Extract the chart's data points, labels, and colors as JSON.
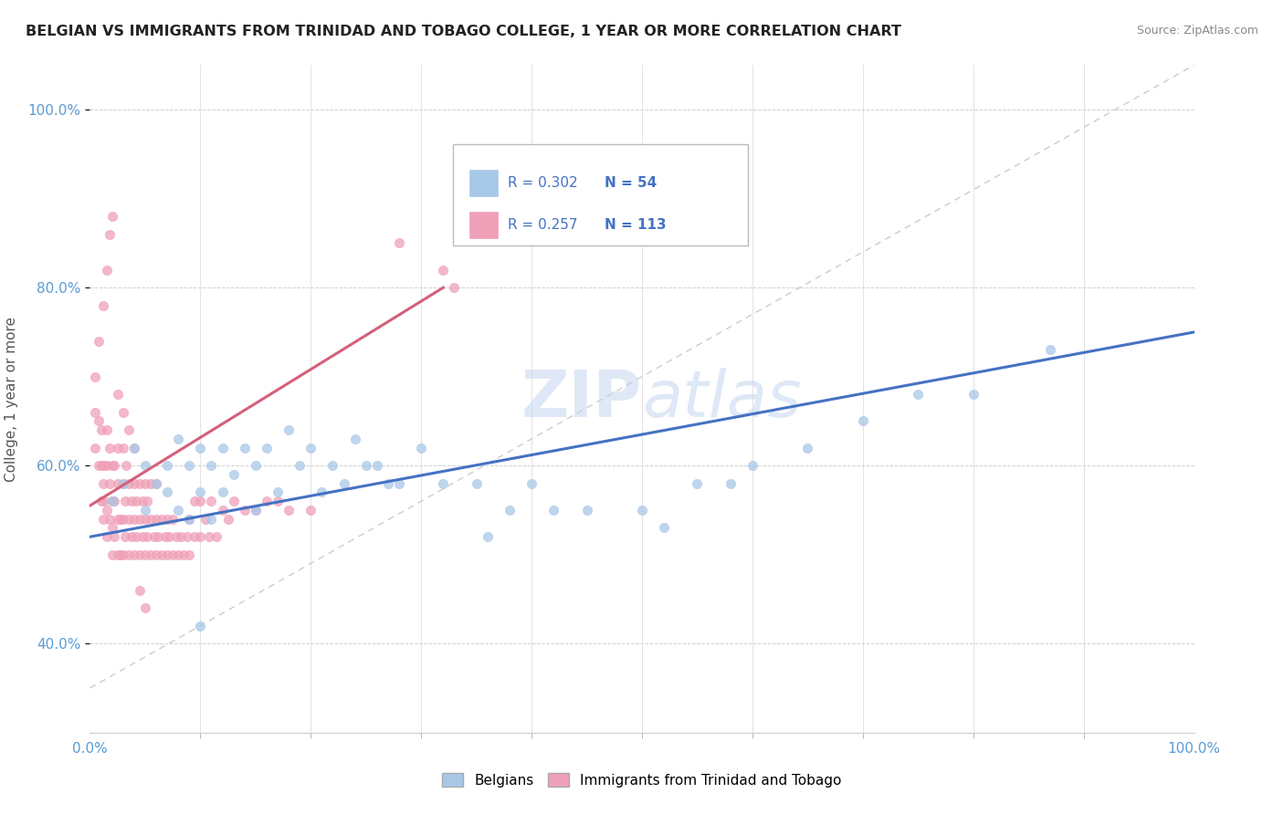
{
  "title": "BELGIAN VS IMMIGRANTS FROM TRINIDAD AND TOBAGO COLLEGE, 1 YEAR OR MORE CORRELATION CHART",
  "source": "Source: ZipAtlas.com",
  "ylabel": "College, 1 year or more",
  "blue_R": "R = 0.302",
  "blue_N": "N = 54",
  "pink_R": "R = 0.257",
  "pink_N": "N = 113",
  "blue_line_color": "#4472c4",
  "pink_line_color": "#d4607a",
  "blue_scatter_color": "#a8c8e8",
  "pink_scatter_color": "#f0a0b8",
  "watermark_color": "#c8daf0",
  "yticks": [
    "40.0%",
    "60.0%",
    "80.0%",
    "100.0%"
  ],
  "ytick_vals": [
    0.4,
    0.6,
    0.8,
    1.0
  ],
  "blue_x": [
    0.02,
    0.03,
    0.04,
    0.05,
    0.05,
    0.06,
    0.07,
    0.07,
    0.08,
    0.08,
    0.09,
    0.09,
    0.1,
    0.1,
    0.11,
    0.11,
    0.12,
    0.12,
    0.13,
    0.14,
    0.15,
    0.15,
    0.16,
    0.17,
    0.18,
    0.19,
    0.2,
    0.21,
    0.22,
    0.23,
    0.24,
    0.25,
    0.26,
    0.27,
    0.28,
    0.3,
    0.32,
    0.35,
    0.36,
    0.38,
    0.4,
    0.42,
    0.45,
    0.5,
    0.52,
    0.55,
    0.58,
    0.6,
    0.65,
    0.7,
    0.75,
    0.8,
    0.87,
    0.1
  ],
  "blue_y": [
    0.56,
    0.58,
    0.62,
    0.6,
    0.55,
    0.58,
    0.6,
    0.57,
    0.63,
    0.55,
    0.6,
    0.54,
    0.62,
    0.57,
    0.6,
    0.54,
    0.62,
    0.57,
    0.59,
    0.62,
    0.6,
    0.55,
    0.62,
    0.57,
    0.64,
    0.6,
    0.62,
    0.57,
    0.6,
    0.58,
    0.63,
    0.6,
    0.6,
    0.58,
    0.58,
    0.62,
    0.58,
    0.58,
    0.52,
    0.55,
    0.58,
    0.55,
    0.55,
    0.55,
    0.53,
    0.58,
    0.58,
    0.6,
    0.62,
    0.65,
    0.68,
    0.68,
    0.73,
    0.42
  ],
  "pink_x": [
    0.005,
    0.005,
    0.008,
    0.008,
    0.01,
    0.01,
    0.01,
    0.012,
    0.012,
    0.013,
    0.013,
    0.015,
    0.015,
    0.015,
    0.015,
    0.018,
    0.018,
    0.018,
    0.02,
    0.02,
    0.02,
    0.02,
    0.022,
    0.022,
    0.022,
    0.025,
    0.025,
    0.025,
    0.025,
    0.028,
    0.028,
    0.03,
    0.03,
    0.03,
    0.03,
    0.032,
    0.032,
    0.033,
    0.035,
    0.035,
    0.035,
    0.038,
    0.038,
    0.04,
    0.04,
    0.04,
    0.042,
    0.042,
    0.045,
    0.045,
    0.045,
    0.048,
    0.048,
    0.05,
    0.05,
    0.05,
    0.052,
    0.052,
    0.055,
    0.055,
    0.055,
    0.058,
    0.06,
    0.06,
    0.06,
    0.062,
    0.065,
    0.065,
    0.068,
    0.07,
    0.07,
    0.072,
    0.075,
    0.075,
    0.078,
    0.08,
    0.082,
    0.085,
    0.088,
    0.09,
    0.09,
    0.095,
    0.095,
    0.1,
    0.1,
    0.105,
    0.108,
    0.11,
    0.115,
    0.12,
    0.125,
    0.13,
    0.14,
    0.15,
    0.16,
    0.17,
    0.18,
    0.2,
    0.005,
    0.008,
    0.012,
    0.015,
    0.018,
    0.02,
    0.025,
    0.03,
    0.035,
    0.04,
    0.28,
    0.32,
    0.33,
    0.045,
    0.05
  ],
  "pink_y": [
    0.62,
    0.66,
    0.6,
    0.65,
    0.56,
    0.6,
    0.64,
    0.54,
    0.58,
    0.56,
    0.6,
    0.52,
    0.55,
    0.6,
    0.64,
    0.54,
    0.58,
    0.62,
    0.5,
    0.53,
    0.56,
    0.6,
    0.52,
    0.56,
    0.6,
    0.5,
    0.54,
    0.58,
    0.62,
    0.5,
    0.54,
    0.5,
    0.54,
    0.58,
    0.62,
    0.52,
    0.56,
    0.6,
    0.5,
    0.54,
    0.58,
    0.52,
    0.56,
    0.5,
    0.54,
    0.58,
    0.52,
    0.56,
    0.5,
    0.54,
    0.58,
    0.52,
    0.56,
    0.5,
    0.54,
    0.58,
    0.52,
    0.56,
    0.5,
    0.54,
    0.58,
    0.52,
    0.5,
    0.54,
    0.58,
    0.52,
    0.5,
    0.54,
    0.52,
    0.5,
    0.54,
    0.52,
    0.5,
    0.54,
    0.52,
    0.5,
    0.52,
    0.5,
    0.52,
    0.5,
    0.54,
    0.52,
    0.56,
    0.52,
    0.56,
    0.54,
    0.52,
    0.56,
    0.52,
    0.55,
    0.54,
    0.56,
    0.55,
    0.55,
    0.56,
    0.56,
    0.55,
    0.55,
    0.7,
    0.74,
    0.78,
    0.82,
    0.86,
    0.88,
    0.68,
    0.66,
    0.64,
    0.62,
    0.85,
    0.82,
    0.8,
    0.46,
    0.44
  ]
}
